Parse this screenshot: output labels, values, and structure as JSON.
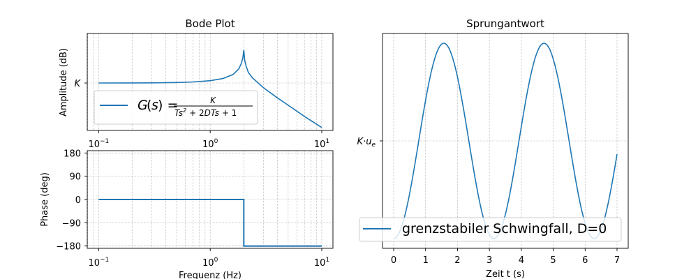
{
  "chart_data": [
    {
      "type": "line",
      "title": "Bode Plot",
      "xlabel": "",
      "ylabel": "Amplitude (dB)",
      "xscale": "log",
      "xlim": [
        0.079,
        12.6
      ],
      "x_ticks": [
        0.1,
        1,
        10
      ],
      "x_tick_labels": [
        [
          "10",
          "−1"
        ],
        [
          "10",
          "0"
        ],
        [
          "10",
          "1"
        ]
      ],
      "y_tick_labels": [
        "K"
      ],
      "grid": true,
      "legend": "lower-left",
      "series": [
        {
          "name": "G(s) = K / (Ts² + 2DTs + 1)",
          "x": [
            0.1,
            0.2,
            0.3,
            0.5,
            0.7,
            1.0,
            1.3,
            1.6,
            1.8,
            1.9,
            1.96,
            2.0,
            2.04,
            2.1,
            2.2,
            2.4,
            3.0,
            4.0,
            5.0,
            7.0,
            10.0
          ],
          "y": [
            0.01,
            0.04,
            0.09,
            0.27,
            0.55,
            1.25,
            2.4,
            4.6,
            7.5,
            10.5,
            13.5,
            17.8,
            12.2,
            9.0,
            5.6,
            2.7,
            -2.5,
            -8.0,
            -12.0,
            -18.0,
            -24.0
          ]
        }
      ]
    },
    {
      "type": "line",
      "title": "",
      "xlabel": "Frequenz (Hz)",
      "ylabel": "Phase (deg)",
      "xscale": "log",
      "xlim": [
        0.079,
        12.6
      ],
      "x_ticks": [
        0.1,
        1,
        10
      ],
      "x_tick_labels": [
        [
          "10",
          "−1"
        ],
        [
          "10",
          "0"
        ],
        [
          "10",
          "1"
        ]
      ],
      "ylim": [
        -189,
        189
      ],
      "y_ticks": [
        -180,
        -90,
        0,
        90,
        180
      ],
      "y_tick_labels": [
        "−180",
        "−90",
        "0",
        "90",
        "180"
      ],
      "grid": true,
      "series": [
        {
          "name": "",
          "x": [
            0.1,
            1.0,
            2.0,
            2.0,
            10.0
          ],
          "y": [
            0,
            0,
            0,
            -180,
            -180
          ]
        }
      ]
    },
    {
      "type": "line",
      "title": "Sprungantwort",
      "xlabel": "Zeit t (s)",
      "ylabel": "",
      "xlim": [
        -0.35,
        7.35
      ],
      "x_ticks": [
        0,
        1,
        2,
        3,
        4,
        5,
        6,
        7
      ],
      "x_tick_labels": [
        "0",
        "1",
        "2",
        "3",
        "4",
        "5",
        "6",
        "7"
      ],
      "ylim": [
        -0.1,
        2.1
      ],
      "y_tick_label": "K·u",
      "y_tick_subscript": "e",
      "y_tick_value": 1,
      "grid": true,
      "legend": "lower-center",
      "function": "y = 1 - cos(2t)",
      "x_range": [
        0,
        7
      ],
      "series": [
        {
          "name": "grenzstabiler Schwingfall, D=0"
        }
      ]
    }
  ],
  "colors": {
    "line": "#1f77b4",
    "grid": "#b0b0b0",
    "axes": "#000000"
  }
}
